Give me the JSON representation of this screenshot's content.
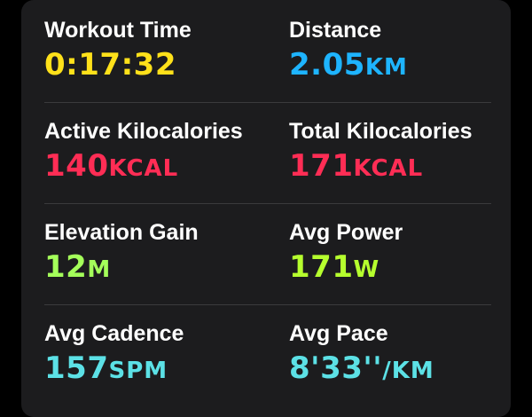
{
  "colors": {
    "background": "#000000",
    "card": "#1c1c1e",
    "divider": "#3a3a3c",
    "label": "#ffffff",
    "yellow": "#ffe11a",
    "blue": "#1eb4ff",
    "red": "#ff2d55",
    "green": "#a4ff5a",
    "lime": "#b6ff2e",
    "cyan": "#5ce1e6"
  },
  "metrics": [
    {
      "label": "Workout Time",
      "value": "0:17:32",
      "unit": "",
      "color": "yellow"
    },
    {
      "label": "Distance",
      "value": "2.05",
      "unit": "KM",
      "color": "blue"
    },
    {
      "label": "Active Kilocalories",
      "value": "140",
      "unit": "KCAL",
      "color": "red"
    },
    {
      "label": "Total Kilocalories",
      "value": "171",
      "unit": "KCAL",
      "color": "red"
    },
    {
      "label": "Elevation Gain",
      "value": "12",
      "unit": "M",
      "color": "green"
    },
    {
      "label": "Avg Power",
      "value": "171",
      "unit": "W",
      "color": "lime"
    },
    {
      "label": "Avg Cadence",
      "value": "157",
      "unit": "SPM",
      "color": "cyan"
    },
    {
      "label": "Avg Pace",
      "value": "8'33''",
      "unit": "/KM",
      "color": "cyan"
    }
  ]
}
